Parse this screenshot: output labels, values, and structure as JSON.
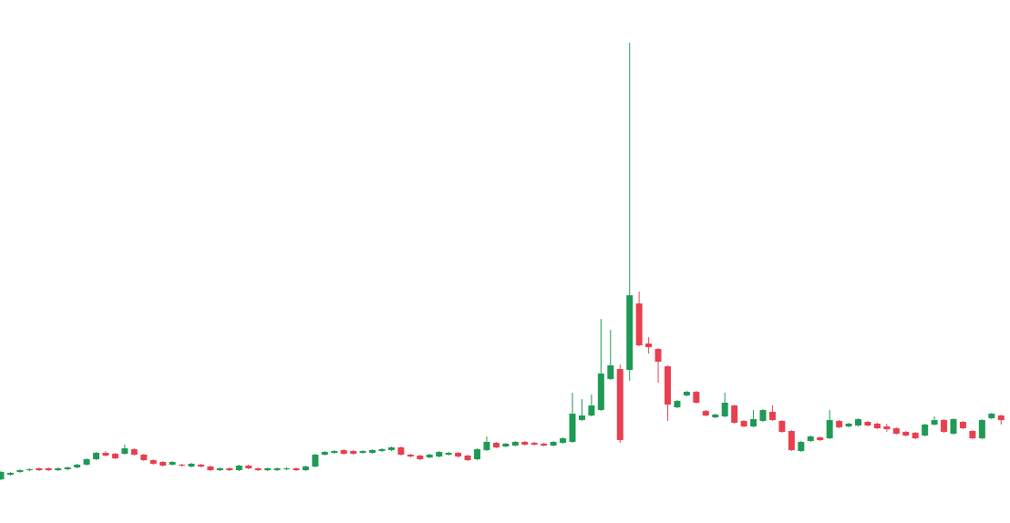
{
  "chart_data": {
    "type": "candlestick",
    "up_color": "#1f9a55",
    "down_color": "#e8404f",
    "ylim": [
      0,
      574
    ],
    "open": [
      48,
      53,
      56,
      58,
      60,
      60,
      58,
      59,
      61,
      64,
      70,
      77,
      76,
      76,
      81,
      75,
      69,
      67,
      64,
      64,
      62,
      64,
      62,
      58,
      60,
      58,
      63,
      60,
      58,
      58,
      59,
      60,
      58,
      62,
      75,
      77,
      80,
      79,
      77,
      77,
      79,
      80,
      83,
      75,
      74,
      72,
      73,
      75,
      77,
      74,
      70,
      80,
      88,
      84,
      85,
      89,
      88,
      87,
      85,
      88,
      89,
      113,
      118,
      124,
      158,
      169,
      168,
      241,
      197,
      191,
      172,
      127,
      140,
      144,
      123,
      116,
      117,
      129,
      112,
      106,
      112,
      122,
      112,
      101,
      79,
      90,
      94,
      93,
      112,
      106,
      107,
      111,
      109,
      106,
      104,
      100,
      99,
      96,
      108,
      113,
      98,
      111,
      101,
      93,
      115,
      118
    ],
    "high": [
      57,
      56,
      59,
      60,
      61,
      61,
      61,
      62,
      65,
      71,
      78,
      79,
      77,
      86,
      82,
      76,
      70,
      68,
      68,
      65,
      66,
      65,
      63,
      61,
      61,
      64,
      64,
      61,
      61,
      61,
      61,
      61,
      63,
      76,
      79,
      80,
      81,
      80,
      80,
      81,
      82,
      84,
      84,
      76,
      75,
      76,
      79,
      78,
      78,
      75,
      82,
      95,
      89,
      88,
      90,
      90,
      89,
      88,
      90,
      94,
      143,
      136,
      141,
      224,
      212,
      174,
      527,
      254,
      204,
      192,
      173,
      135,
      145,
      145,
      124,
      120,
      143,
      130,
      113,
      124,
      125,
      129,
      113,
      102,
      90,
      96,
      95,
      124,
      113,
      110,
      115,
      112,
      110,
      109,
      105,
      101,
      100,
      109,
      117,
      114,
      115,
      112,
      102,
      114,
      121,
      119
    ],
    "low": [
      47,
      52,
      55,
      57,
      57,
      57,
      57,
      58,
      60,
      63,
      69,
      73,
      70,
      75,
      74,
      68,
      64,
      62,
      63,
      62,
      61,
      61,
      57,
      57,
      57,
      57,
      59,
      57,
      57,
      57,
      58,
      57,
      57,
      61,
      74,
      76,
      75,
      75,
      76,
      76,
      78,
      79,
      74,
      72,
      69,
      71,
      72,
      74,
      72,
      68,
      69,
      79,
      82,
      83,
      84,
      85,
      85,
      84,
      84,
      87,
      88,
      112,
      117,
      123,
      157,
      88,
      156,
      194,
      186,
      154,
      112,
      126,
      139,
      131,
      117,
      115,
      116,
      109,
      105,
      105,
      111,
      112,
      99,
      79,
      78,
      89,
      90,
      92,
      104,
      105,
      106,
      106,
      103,
      100,
      97,
      95,
      92,
      95,
      107,
      99,
      97,
      103,
      92,
      92,
      114,
      108
    ],
    "close": [
      56,
      55,
      58,
      59,
      58,
      58,
      60,
      61,
      64,
      70,
      77,
      74,
      71,
      82,
      75,
      69,
      65,
      63,
      67,
      63,
      65,
      62,
      58,
      60,
      58,
      63,
      60,
      58,
      60,
      60,
      60,
      58,
      62,
      75,
      78,
      79,
      76,
      76,
      79,
      80,
      81,
      83,
      75,
      73,
      70,
      75,
      78,
      77,
      73,
      69,
      81,
      89,
      83,
      87,
      89,
      86,
      86,
      85,
      89,
      93,
      120,
      118,
      129,
      164,
      173,
      91,
      250,
      195,
      193,
      177,
      130,
      134,
      144,
      132,
      118,
      119,
      132,
      110,
      106,
      114,
      124,
      113,
      100,
      80,
      89,
      95,
      91,
      113,
      105,
      109,
      114,
      107,
      104,
      103,
      98,
      96,
      93,
      108,
      113,
      100,
      114,
      104,
      93,
      113,
      120,
      113
    ]
  }
}
